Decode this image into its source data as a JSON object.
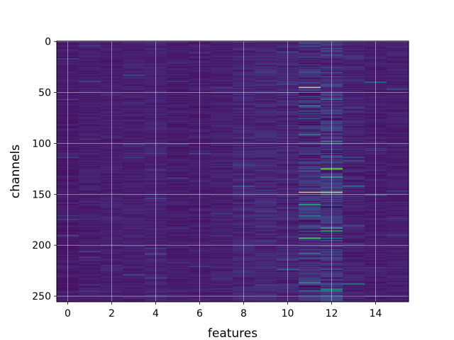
{
  "chart_data": {
    "type": "heatmap",
    "title": "",
    "xlabel": "features",
    "ylabel": "channels",
    "xlim": [
      -0.5,
      15.5
    ],
    "ylim": [
      255.5,
      -0.5
    ],
    "x_ticks": [
      0,
      2,
      4,
      6,
      8,
      10,
      12,
      14
    ],
    "x_tick_labels": [
      "0",
      "2",
      "4",
      "6",
      "8",
      "10",
      "12",
      "14"
    ],
    "y_ticks": [
      0,
      50,
      100,
      150,
      200,
      250
    ],
    "y_tick_labels": [
      "0",
      "50",
      "100",
      "150",
      "200",
      "250"
    ],
    "n_features": 16,
    "n_channels": 256,
    "grid": true,
    "colormap": "viridis",
    "value_range": [
      0,
      1
    ],
    "background_value": 0.1,
    "column_levels": [
      0.09,
      0.1,
      0.11,
      0.11,
      0.12,
      0.1,
      0.1,
      0.11,
      0.13,
      0.14,
      0.13,
      0.18,
      0.2,
      0.12,
      0.1,
      0.11
    ],
    "highlights": [
      {
        "feature": 11,
        "channel": 45,
        "value": 0.95
      },
      {
        "feature": 11,
        "channel": 63,
        "value": 0.6
      },
      {
        "feature": 11,
        "channel": 91,
        "value": 0.55
      },
      {
        "feature": 11,
        "channel": 127,
        "value": 0.45
      },
      {
        "feature": 11,
        "channel": 148,
        "value": 0.95
      },
      {
        "feature": 11,
        "channel": 160,
        "value": 0.7
      },
      {
        "feature": 11,
        "channel": 171,
        "value": 0.5
      },
      {
        "feature": 11,
        "channel": 193,
        "value": 0.8
      },
      {
        "feature": 11,
        "channel": 208,
        "value": 0.5
      },
      {
        "feature": 11,
        "channel": 237,
        "value": 0.65
      },
      {
        "feature": 11,
        "channel": 245,
        "value": 0.5
      },
      {
        "feature": 12,
        "channel": 98,
        "value": 0.6
      },
      {
        "feature": 12,
        "channel": 125,
        "value": 0.85
      },
      {
        "feature": 12,
        "channel": 133,
        "value": 0.7
      },
      {
        "feature": 12,
        "channel": 148,
        "value": 0.95
      },
      {
        "feature": 12,
        "channel": 183,
        "value": 0.7
      },
      {
        "feature": 12,
        "channel": 186,
        "value": 0.75
      },
      {
        "feature": 12,
        "channel": 193,
        "value": 0.55
      },
      {
        "feature": 12,
        "channel": 243,
        "value": 0.65
      },
      {
        "feature": 12,
        "channel": 245,
        "value": 0.6
      },
      {
        "feature": 12,
        "channel": 57,
        "value": 0.45
      },
      {
        "feature": 13,
        "channel": 142,
        "value": 0.45
      },
      {
        "feature": 13,
        "channel": 238,
        "value": 0.5
      },
      {
        "feature": 8,
        "channel": 142,
        "value": 0.4
      },
      {
        "feature": 10,
        "channel": 224,
        "value": 0.4
      },
      {
        "feature": 3,
        "channel": 33,
        "value": 0.35
      },
      {
        "feature": 14,
        "channel": 40,
        "value": 0.45
      }
    ]
  }
}
